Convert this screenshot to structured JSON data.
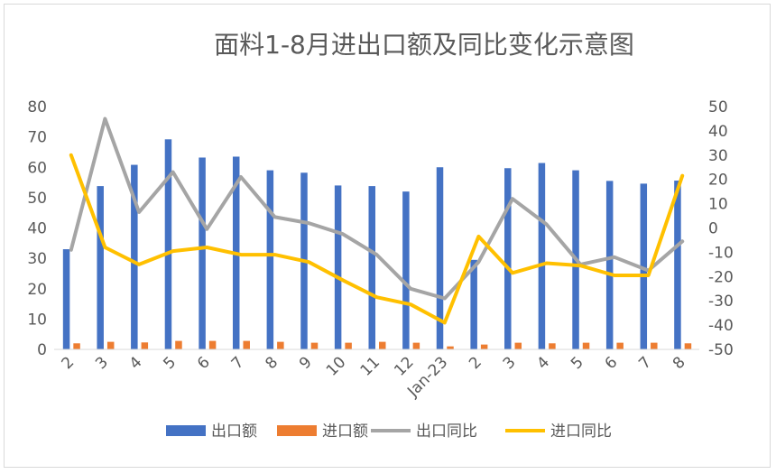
{
  "chart_data": {
    "type": "bar",
    "title": "面料1-8月进出口额及同比变化示意图",
    "categories": [
      "2",
      "3",
      "4",
      "5",
      "6",
      "7",
      "8",
      "9",
      "10",
      "11",
      "12",
      "Jan-23",
      "2",
      "3",
      "4",
      "5",
      "6",
      "7",
      "8"
    ],
    "y_left": {
      "ylim": [
        0,
        80
      ],
      "ticks": [
        0,
        10,
        20,
        30,
        40,
        50,
        60,
        70,
        80
      ]
    },
    "y_right": {
      "ylim": [
        -50,
        50
      ],
      "ticks": [
        -50,
        -40,
        -30,
        -20,
        -10,
        0,
        10,
        20,
        30,
        40,
        50
      ]
    },
    "series": [
      {
        "name": "出口额",
        "kind": "bar",
        "axis": "left",
        "color": "#4472C4",
        "values": [
          33.0,
          53.8,
          60.8,
          69.2,
          63.2,
          63.5,
          59.0,
          58.2,
          54.0,
          53.8,
          52.0,
          60.0,
          29.5,
          59.7,
          61.4,
          59.0,
          55.5,
          54.6,
          55.6
        ]
      },
      {
        "name": "进口额",
        "kind": "bar",
        "axis": "left",
        "color": "#ED7D31",
        "values": [
          2.0,
          2.5,
          2.3,
          2.8,
          2.8,
          2.8,
          2.5,
          2.2,
          2.2,
          2.5,
          2.2,
          1.0,
          1.6,
          2.2,
          2.0,
          2.2,
          2.2,
          2.2,
          2.0
        ]
      },
      {
        "name": "出口同比",
        "kind": "line",
        "axis": "right",
        "color": "#A5A5A5",
        "values": [
          -9.0,
          45.0,
          6.5,
          23.0,
          -0.5,
          21.0,
          4.5,
          2.0,
          -2.5,
          -11.0,
          -25.0,
          -29.0,
          -14.0,
          12.0,
          1.5,
          -15.0,
          -12.0,
          -17.5,
          -5.5
        ]
      },
      {
        "name": "进口同比",
        "kind": "line",
        "axis": "right",
        "color": "#FFC000",
        "values": [
          30.0,
          -8.0,
          -15.0,
          -9.5,
          -8.0,
          -11.0,
          -11.0,
          -14.0,
          -21.5,
          -28.5,
          -31.5,
          -39.0,
          -3.5,
          -18.5,
          -14.5,
          -15.5,
          -19.5,
          -19.5,
          21.5
        ]
      }
    ],
    "legend": {
      "position": "bottom"
    },
    "grid": false
  }
}
